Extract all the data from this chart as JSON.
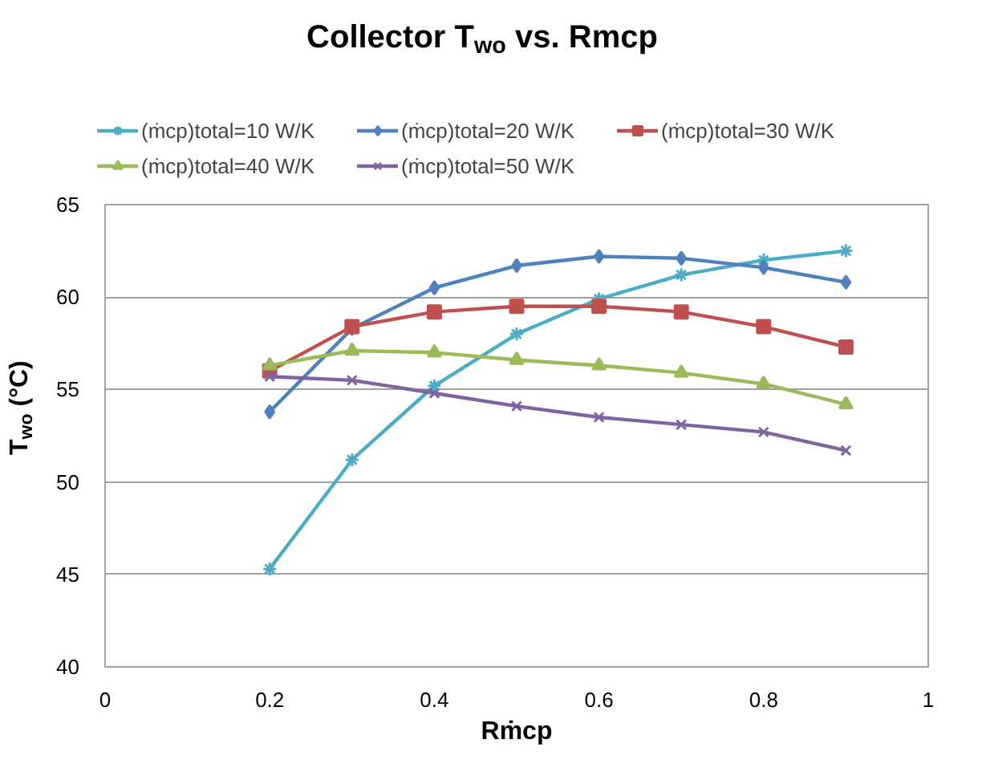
{
  "chart_data": {
    "type": "line",
    "title": "Collector T$_{wo}$ vs. Rmcp",
    "xlabel": "Rṁcp",
    "ylabel": "T$_{wo}$ (°C)",
    "x": [
      0.2,
      0.3,
      0.4,
      0.5,
      0.6,
      0.7,
      0.8,
      0.9
    ],
    "xlim": [
      0,
      1
    ],
    "xticks": [
      0,
      0.2,
      0.4,
      0.6,
      0.8,
      1
    ],
    "ylim": [
      40,
      65
    ],
    "yticks": [
      40,
      45,
      50,
      55,
      60,
      65
    ],
    "grid": "y",
    "legend": "top",
    "line_style": "solid",
    "series": [
      {
        "name": "(ṁcp)total=10 W/K",
        "color": "#4bacc6",
        "marker": "cross",
        "values": [
          45.3,
          51.2,
          55.2,
          58.0,
          59.9,
          61.2,
          62.0,
          62.5
        ]
      },
      {
        "name": "(ṁcp)total=20 W/K",
        "color": "#4f81bd",
        "marker": "diamond",
        "values": [
          53.8,
          58.3,
          60.5,
          61.7,
          62.2,
          62.1,
          61.6,
          60.8
        ]
      },
      {
        "name": "(ṁcp)total=30 W/K",
        "color": "#c0504d",
        "marker": "square",
        "values": [
          56.0,
          58.4,
          59.2,
          59.5,
          59.5,
          59.2,
          58.4,
          57.3
        ]
      },
      {
        "name": "(ṁcp)total=40 W/K",
        "color": "#9bbb59",
        "marker": "triangle",
        "values": [
          56.3,
          57.1,
          57.0,
          56.6,
          56.3,
          55.9,
          55.3,
          54.2
        ]
      },
      {
        "name": "(ṁcp)total=50 W/K",
        "color": "#8064a2",
        "marker": "x",
        "values": [
          55.7,
          55.5,
          54.8,
          54.1,
          53.5,
          53.1,
          52.7,
          51.7
        ]
      }
    ]
  }
}
